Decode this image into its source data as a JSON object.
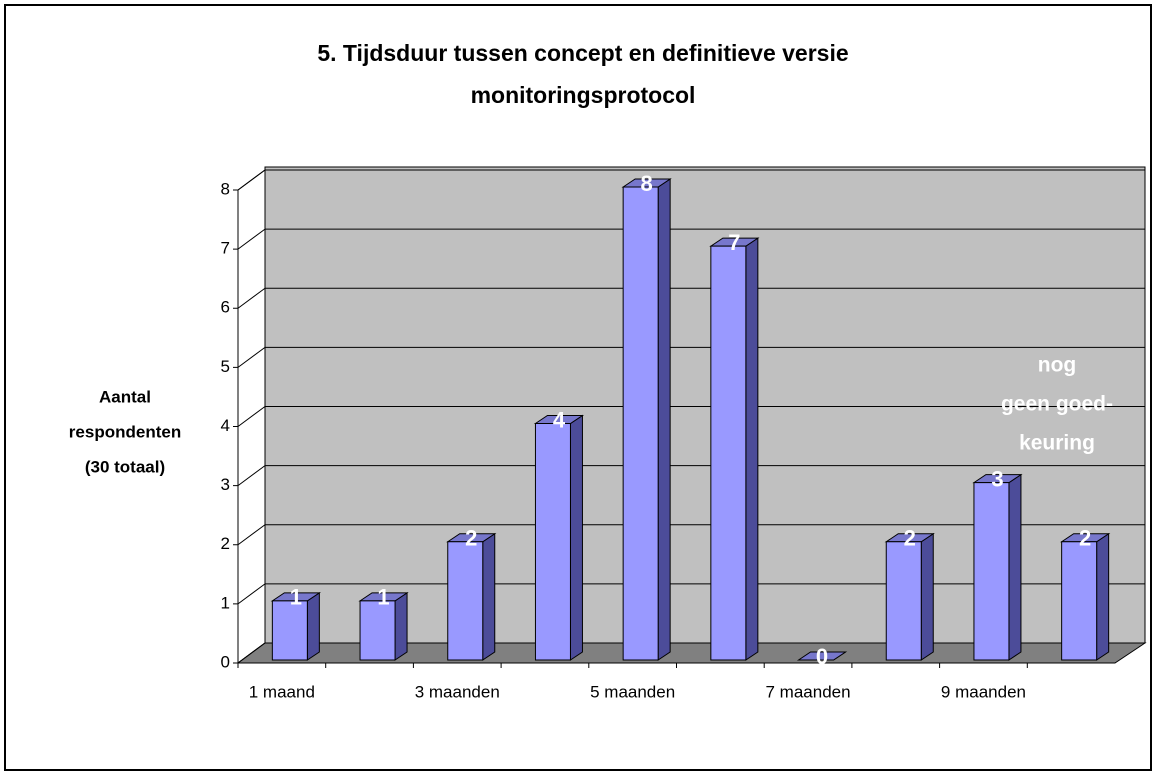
{
  "chart_data": {
    "type": "bar3d",
    "title": [
      "5. Tijdsduur tussen concept en definitieve versie",
      "monitoringsprotocol"
    ],
    "y_label": [
      "Aantal",
      "respondenten",
      "(30 totaal)"
    ],
    "annotation": [
      "nog",
      "geen goed-",
      "keuring"
    ],
    "categories": [
      "1 maand",
      null,
      "3 maanden",
      null,
      "5 maanden",
      null,
      "7 maanden",
      null,
      "9 maanden",
      null
    ],
    "values": [
      1,
      1,
      2,
      4,
      8,
      7,
      0,
      2,
      3,
      2
    ],
    "color": "#9999ff",
    "ylim": [
      0,
      8
    ],
    "yticks": [
      0,
      1,
      2,
      3,
      4,
      5,
      6,
      7,
      8
    ],
    "grid": true
  }
}
